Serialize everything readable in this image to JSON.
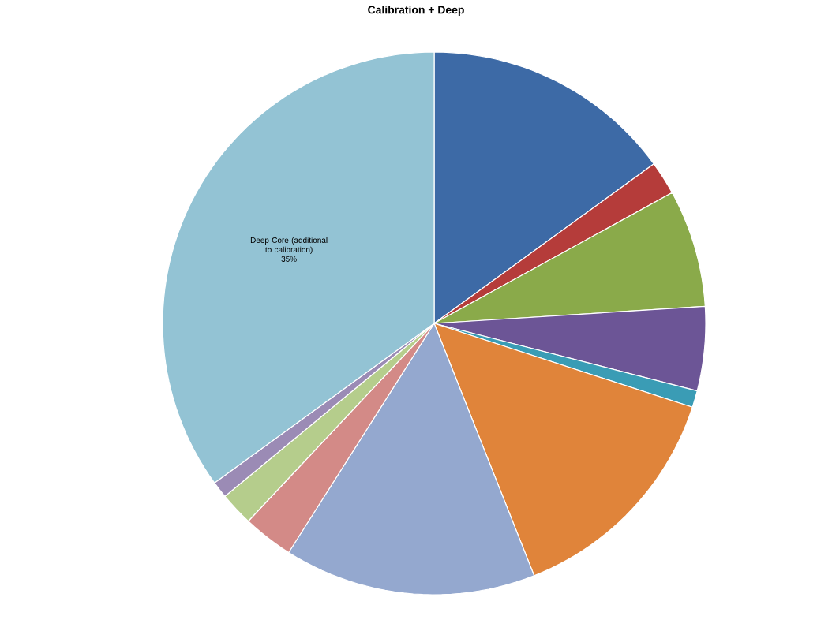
{
  "chart_data": {
    "type": "pie",
    "title": "Calibration + Deep",
    "categories": [
      null,
      null,
      null,
      null,
      null,
      null,
      null,
      null,
      null,
      null,
      "Deep Core (additional to calibration)"
    ],
    "values": [
      15,
      2,
      7,
      5,
      1,
      14,
      15,
      3,
      2,
      1,
      35
    ],
    "value_labels": [
      null,
      null,
      null,
      null,
      null,
      null,
      null,
      null,
      null,
      null,
      "35%"
    ],
    "colors": [
      "#3d6aa6",
      "#b53c3a",
      "#8aaa4a",
      "#6c5596",
      "#3a9cb5",
      "#e0843a",
      "#94a8cf",
      "#d38a87",
      "#b5cd8c",
      "#9b8bb5",
      "#93c3d4"
    ]
  }
}
